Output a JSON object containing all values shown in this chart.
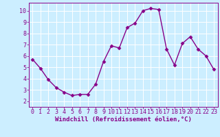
{
  "x": [
    0,
    1,
    2,
    3,
    4,
    5,
    6,
    7,
    8,
    9,
    10,
    11,
    12,
    13,
    14,
    15,
    16,
    17,
    18,
    19,
    20,
    21,
    22,
    23
  ],
  "y": [
    5.7,
    4.9,
    3.9,
    3.2,
    2.8,
    2.5,
    2.6,
    2.6,
    3.5,
    5.5,
    6.9,
    6.7,
    8.5,
    8.9,
    10.0,
    10.2,
    10.1,
    6.6,
    5.2,
    7.1,
    7.7,
    6.6,
    6.0,
    4.8
  ],
  "line_color": "#880088",
  "marker": "D",
  "marker_size": 2.5,
  "bg_color": "#cceeff",
  "grid_color": "#ffffff",
  "xlabel": "Windchill (Refroidissement éolien,°C)",
  "xlabel_color": "#880088",
  "tick_color": "#880088",
  "xlim": [
    -0.5,
    23.5
  ],
  "ylim": [
    1.5,
    10.7
  ],
  "yticks": [
    2,
    3,
    4,
    5,
    6,
    7,
    8,
    9,
    10
  ],
  "xticks": [
    0,
    1,
    2,
    3,
    4,
    5,
    6,
    7,
    8,
    9,
    10,
    11,
    12,
    13,
    14,
    15,
    16,
    17,
    18,
    19,
    20,
    21,
    22,
    23
  ],
  "spine_color": "#880088",
  "line_width": 1.0,
  "tick_fontsize": 6.0,
  "xlabel_fontsize": 6.5
}
